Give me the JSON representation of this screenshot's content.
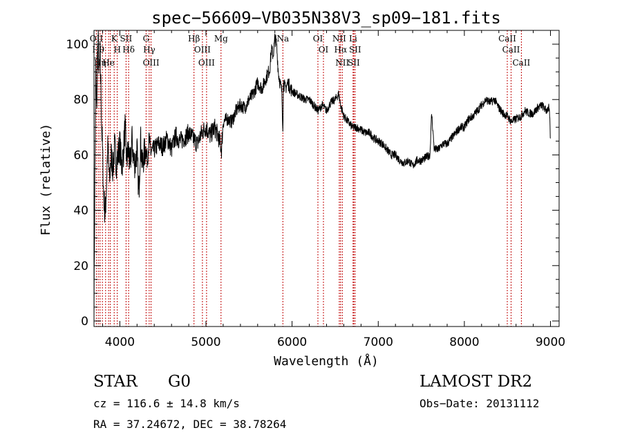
{
  "chart_data": {
    "type": "line",
    "title": "spec−56609−VB035N38V3_sp09−181.fits",
    "xlabel": "Wavelength (Å)",
    "ylabel": "Flux (relative)",
    "xlim": [
      3700,
      9100
    ],
    "ylim": [
      -2,
      105
    ],
    "xticks": [
      4000,
      5000,
      6000,
      7000,
      8000,
      9000
    ],
    "yticks": [
      0,
      20,
      40,
      60,
      80,
      100
    ],
    "grid": false,
    "series": [
      {
        "color": "#000000",
        "x": [
          3700,
          3710,
          3720,
          3730,
          3740,
          3750,
          3760,
          3770,
          3780,
          3790,
          3800,
          3810,
          3820,
          3830,
          3840,
          3850,
          3860,
          3870,
          3880,
          3890,
          3900,
          3920,
          3940,
          3960,
          3980,
          4000,
          4020,
          4040,
          4060,
          4080,
          4100,
          4120,
          4140,
          4160,
          4180,
          4200,
          4220,
          4240,
          4260,
          4280,
          4300,
          4320,
          4340,
          4360,
          4400,
          4450,
          4500,
          4550,
          4600,
          4650,
          4700,
          4750,
          4800,
          4850,
          4900,
          4950,
          5000,
          5050,
          5100,
          5150,
          5180,
          5200,
          5250,
          5300,
          5350,
          5400,
          5450,
          5500,
          5550,
          5600,
          5650,
          5700,
          5740,
          5760,
          5780,
          5800,
          5820,
          5840,
          5860,
          5880,
          5893,
          5900,
          5920,
          5950,
          6000,
          6050,
          6100,
          6150,
          6200,
          6250,
          6300,
          6350,
          6400,
          6450,
          6500,
          6540,
          6563,
          6600,
          6650,
          6700,
          6750,
          6800,
          6850,
          6900,
          6950,
          7000,
          7050,
          7100,
          7150,
          7200,
          7250,
          7300,
          7350,
          7400,
          7450,
          7500,
          7550,
          7600,
          7620,
          7650,
          7700,
          7750,
          7800,
          7850,
          7900,
          7950,
          8000,
          8050,
          8100,
          8150,
          8200,
          8250,
          8300,
          8350,
          8400,
          8450,
          8500,
          8542,
          8600,
          8662,
          8700,
          8750,
          8800,
          8850,
          8900,
          8950,
          8980,
          8990,
          9000
        ],
        "y": [
          2,
          50,
          90,
          75,
          95,
          100,
          88,
          96,
          85,
          70,
          60,
          48,
          42,
          38,
          45,
          55,
          62,
          58,
          50,
          56,
          60,
          55,
          63,
          57,
          60,
          64,
          56,
          60,
          70,
          58,
          62,
          55,
          66,
          58,
          57,
          62,
          45,
          66,
          56,
          60,
          62,
          58,
          66,
          61,
          62,
          64,
          63,
          66,
          62,
          67,
          65,
          66,
          68,
          66,
          64,
          68,
          70,
          67,
          70,
          66,
          62,
          72,
          73,
          72,
          76,
          78,
          77,
          80,
          82,
          86,
          84,
          88,
          91,
          98,
          96,
          102,
          100,
          90,
          86,
          83,
          70,
          86,
          84,
          86,
          83,
          82,
          81,
          80,
          80,
          78,
          76,
          78,
          76,
          79,
          80,
          82,
          78,
          74,
          72,
          70,
          70,
          69,
          68,
          68,
          66,
          65,
          64,
          62,
          60,
          60,
          58,
          57,
          58,
          56,
          58,
          58,
          59,
          60,
          75,
          62,
          62,
          64,
          64,
          66,
          68,
          70,
          70,
          73,
          74,
          76,
          78,
          80,
          79,
          80,
          77,
          75,
          74,
          72,
          73,
          74,
          76,
          75,
          75,
          77,
          78,
          76,
          77,
          74,
          65
        ]
      }
    ],
    "lines": [
      {
        "wavelength": 3727,
        "labels": [
          "OII"
        ]
      },
      {
        "wavelength": 3750,
        "labels": [
          "Hθ"
        ]
      },
      {
        "wavelength": 3771,
        "labels": [
          "Hη"
        ]
      },
      {
        "wavelength": 3798,
        "labels": []
      },
      {
        "wavelength": 3835,
        "labels": []
      },
      {
        "wavelength": 3869,
        "labels": [
          "He"
        ]
      },
      {
        "wavelength": 3889,
        "labels": []
      },
      {
        "wavelength": 3934,
        "labels": [
          "K"
        ]
      },
      {
        "wavelength": 3970,
        "labels": [
          "H"
        ]
      },
      {
        "wavelength": 4072,
        "labels": [
          "SII"
        ]
      },
      {
        "wavelength": 4102,
        "labels": [
          "Hδ"
        ]
      },
      {
        "wavelength": 4305,
        "labels": [
          "G"
        ]
      },
      {
        "wavelength": 4341,
        "labels": [
          "Hγ"
        ]
      },
      {
        "wavelength": 4363,
        "labels": [
          "OIII"
        ]
      },
      {
        "wavelength": 4861,
        "labels": [
          "Hβ"
        ]
      },
      {
        "wavelength": 4959,
        "labels": [
          "OIII"
        ]
      },
      {
        "wavelength": 5007,
        "labels": [
          "OIII"
        ]
      },
      {
        "wavelength": 5175,
        "labels": [
          "Mg"
        ]
      },
      {
        "wavelength": 5893,
        "labels": [
          "Na"
        ]
      },
      {
        "wavelength": 6300,
        "labels": [
          "OI"
        ]
      },
      {
        "wavelength": 6364,
        "labels": [
          "OI"
        ]
      },
      {
        "wavelength": 6548,
        "labels": [
          "NII"
        ]
      },
      {
        "wavelength": 6563,
        "labels": [
          "Hα"
        ]
      },
      {
        "wavelength": 6583,
        "labels": [
          "NII"
        ]
      },
      {
        "wavelength": 6708,
        "labels": [
          "Li"
        ]
      },
      {
        "wavelength": 6716,
        "labels": [
          "SII"
        ]
      },
      {
        "wavelength": 6731,
        "labels": [
          "SII"
        ]
      },
      {
        "wavelength": 8498,
        "labels": [
          "CaII"
        ]
      },
      {
        "wavelength": 8542,
        "labels": [
          "CaII"
        ]
      },
      {
        "wavelength": 8662,
        "labels": [
          "CaII"
        ]
      }
    ]
  },
  "info": {
    "class": "STAR",
    "subclass": "G0",
    "survey": "LAMOST DR2",
    "cz": "cz = 116.6 ± 14.8 km/s",
    "obs_date": "Obs−Date: 20131112",
    "coords": "RA =  37.24672, DEC =  38.78264"
  },
  "colors": {
    "spectrum": "#000000",
    "line_markers": "#c00000",
    "background": "#ffffff"
  }
}
